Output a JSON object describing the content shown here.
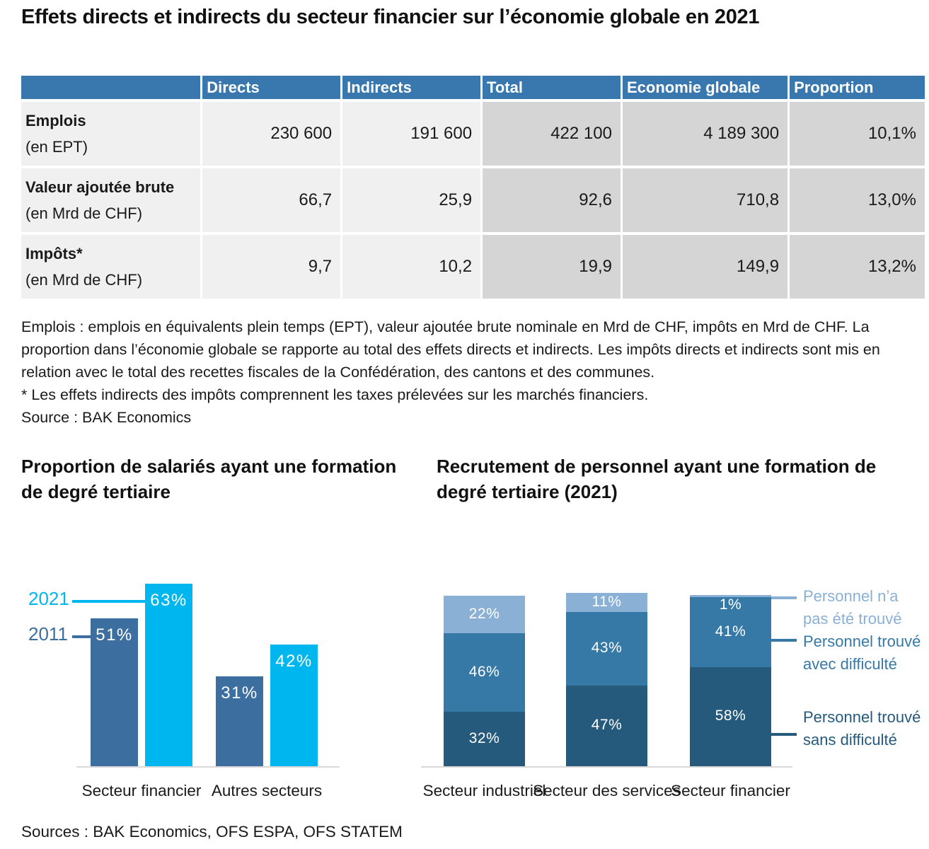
{
  "title": "Effets directs et indirects du secteur financier sur l’économie globale en 2021",
  "table": {
    "headers": [
      "",
      "Directs",
      "Indirects",
      "Total",
      "Economie globale",
      "Proportion"
    ],
    "rows": [
      {
        "label": "Emplois",
        "unit": "(en EPT)",
        "values": [
          "230 600",
          "191 600",
          "422 100",
          "4 189 300",
          "10,1%"
        ]
      },
      {
        "label": "Valeur ajoutée brute",
        "unit": "(en Mrd de CHF)",
        "values": [
          "66,7",
          "25,9",
          "92,6",
          "710,8",
          "13,0%"
        ]
      },
      {
        "label": "Impôts*",
        "unit": "(en Mrd de CHF)",
        "values": [
          "9,7",
          "10,2",
          "19,9",
          "149,9",
          "13,2%"
        ]
      }
    ]
  },
  "notes": {
    "paragraph": "Emplois : emplois en équivalents plein temps (EPT), valeur ajoutée brute nominale en Mrd de CHF, impôts en Mrd de CHF. La proportion dans l’économie globale se rapporte au total des effets directs et indirects. Les impôts directs et indirects sont mis en relation avec le total des recettes fiscales de la Confédération, des cantons et des communes.",
    "footnote": "*  Les effets indirects des impôts comprennent les taxes prélevées sur les marchés financiers.",
    "source": "Source : BAK Economics"
  },
  "chart_data": [
    {
      "type": "bar",
      "title": "Proportion de salariés ayant une formation de degré tertiaire",
      "categories": [
        "Secteur financier",
        "Autres secteurs"
      ],
      "series": [
        {
          "name": "2011",
          "color": "#3c6f9f",
          "values": [
            51,
            31
          ]
        },
        {
          "name": "2021",
          "color": "#00b6ef",
          "values": [
            63,
            42
          ]
        }
      ],
      "unit": "%",
      "ylim": [
        0,
        68
      ],
      "grid": false,
      "legend_position": "left-callouts"
    },
    {
      "type": "stacked-bar",
      "title": "Recrutement de personnel ayant une formation de degré tertiaire (2021)",
      "categories": [
        "Secteur industriel",
        "Secteur des services",
        "Secteur financier"
      ],
      "series": [
        {
          "name": "Personnel trouvé sans difficulté",
          "color": "#265a7d",
          "values": [
            32,
            47,
            58
          ]
        },
        {
          "name": "Personnel trouvé avec difficulté",
          "color": "#3678a6",
          "values": [
            46,
            43,
            41
          ]
        },
        {
          "name": "Personnel n’a pas été trouvé",
          "color": "#8ab0d5",
          "values": [
            22,
            11,
            1
          ]
        }
      ],
      "unit": "%",
      "ylim": [
        0,
        100
      ],
      "grid": false,
      "legend_position": "right-callouts"
    }
  ],
  "footer": "Sources : BAK Economics, OFS ESPA, OFS STATEM",
  "colors": {
    "header_blue": "#3878ae",
    "cell_light": "#f0f0f0",
    "cell_dark": "#d5d5d5",
    "bar_2011": "#3c6f9f",
    "bar_2021": "#00b6ef",
    "stack_bottom": "#265a7d",
    "stack_middle": "#3678a6",
    "stack_top": "#8ab0d5",
    "axis_line": "#d9d9d9"
  }
}
